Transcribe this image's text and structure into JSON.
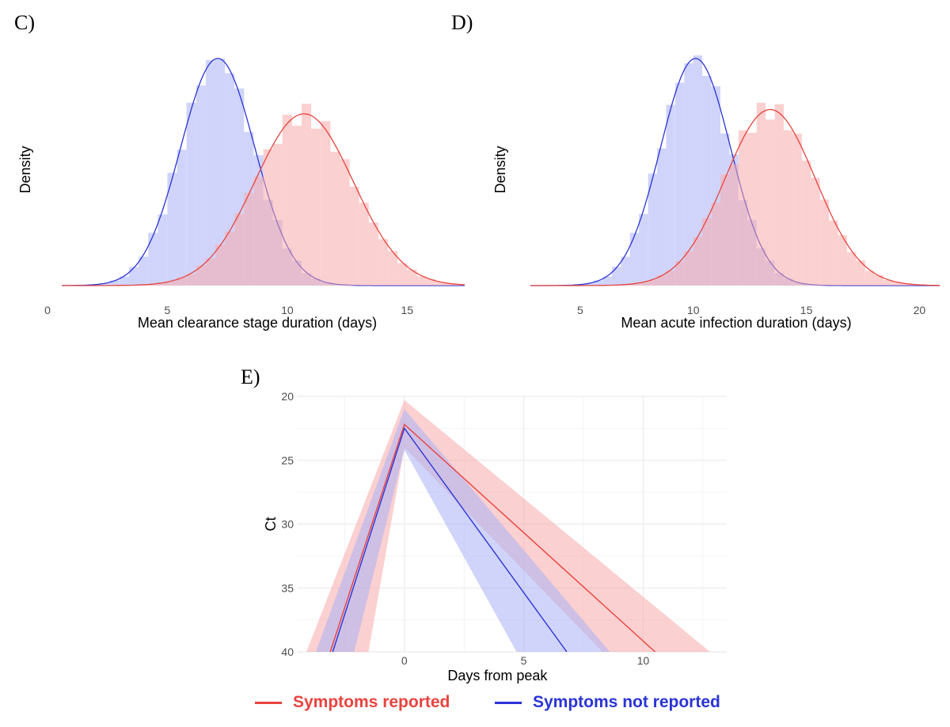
{
  "panels": {
    "c": "C)",
    "d": "D)",
    "e": "E)"
  },
  "colors": {
    "red": "#e8433e",
    "blue": "#2a34d6",
    "red_fill": "#f8aaaa",
    "blue_fill": "#aab0f5",
    "grid": "#ebebeb"
  },
  "legend": {
    "items": [
      {
        "label": "Symptoms reported",
        "color": "#e8433e"
      },
      {
        "label": "Symptoms not reported",
        "color": "#2a34d6"
      }
    ]
  },
  "chart_data": [
    {
      "id": "C",
      "type": "histogram-density",
      "title": "",
      "xlabel": "Mean clearance stage duration (days)",
      "ylabel": "Density",
      "xlim": [
        0,
        17.5
      ],
      "xticks": [
        0,
        5,
        10,
        15
      ],
      "series": [
        {
          "name": "Symptoms not reported",
          "color": "blue",
          "mean": 7.1,
          "sd": 1.55,
          "range": [
            0.6,
            17.4
          ]
        },
        {
          "name": "Symptoms reported",
          "color": "red",
          "mean": 10.7,
          "sd": 2.05,
          "range": [
            0.6,
            17.4
          ]
        }
      ]
    },
    {
      "id": "D",
      "type": "histogram-density",
      "title": "",
      "xlabel": "Mean acute infection duration (days)",
      "ylabel": "Density",
      "xlim": [
        2.8,
        21
      ],
      "xticks": [
        5,
        10,
        15,
        20
      ],
      "series": [
        {
          "name": "Symptoms not reported",
          "color": "blue",
          "mean": 10.1,
          "sd": 1.55,
          "range": [
            2.8,
            20.9
          ]
        },
        {
          "name": "Symptoms reported",
          "color": "red",
          "mean": 13.4,
          "sd": 2.0,
          "range": [
            2.8,
            20.9
          ]
        }
      ]
    },
    {
      "id": "E",
      "type": "line",
      "xlabel": "Days from peak",
      "ylabel": "Ct",
      "xlim": [
        -4.5,
        13.5
      ],
      "ylim": [
        20,
        40
      ],
      "y_reversed": true,
      "xticks": [
        0,
        5,
        10
      ],
      "yticks": [
        20,
        25,
        30,
        35,
        40
      ],
      "series": [
        {
          "name": "Symptoms reported",
          "color": "red",
          "line": [
            [
              -3.1,
              40
            ],
            [
              0,
              22.2
            ],
            [
              10.5,
              40
            ]
          ],
          "ribbon": [
            [
              -4.1,
              40
            ],
            [
              0,
              20.3
            ],
            [
              12.8,
              40
            ],
            [
              8.3,
              40
            ],
            [
              0,
              24.0
            ],
            [
              -1.5,
              40
            ]
          ]
        },
        {
          "name": "Symptoms not reported",
          "color": "blue",
          "line": [
            [
              -3.0,
              40
            ],
            [
              0,
              22.5
            ],
            [
              6.8,
              40
            ]
          ],
          "ribbon": [
            [
              -3.7,
              40
            ],
            [
              0,
              21.0
            ],
            [
              8.6,
              40
            ],
            [
              4.7,
              40
            ],
            [
              0,
              24.2
            ],
            [
              -2.1,
              40
            ]
          ]
        }
      ]
    }
  ]
}
